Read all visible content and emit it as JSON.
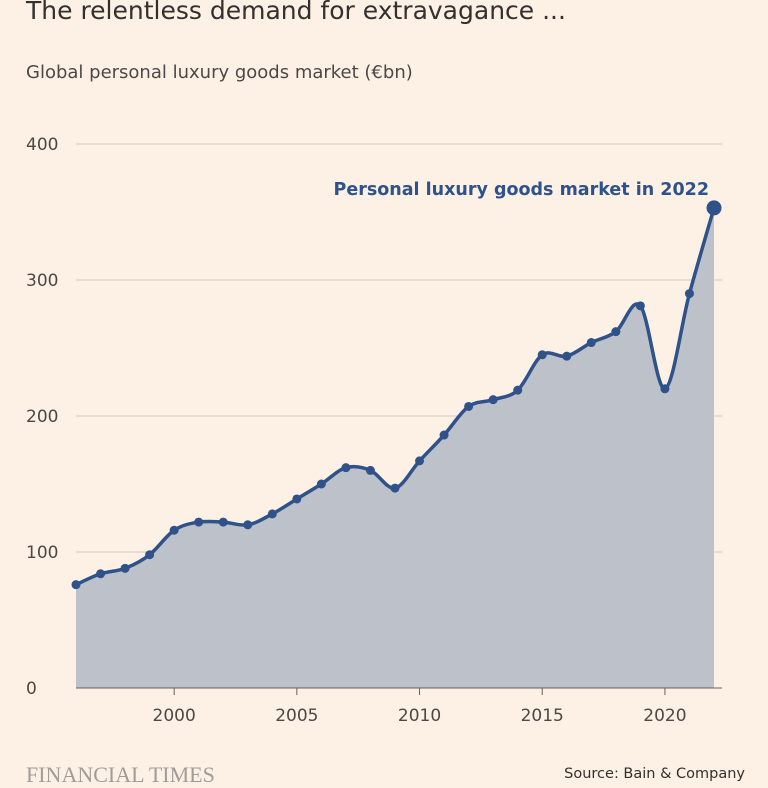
{
  "title": "The relentless demand for extravagance ...",
  "subtitle": "Global personal luxury goods market (€bn)",
  "source": "Source: Bain & Company",
  "logo_text": "FINANCIAL TIMES",
  "colors": {
    "background": "#fdf1e6",
    "line": "#2e5289",
    "area": "#bcc1ca",
    "grid": "#cfc6bd",
    "text": "#4d4845"
  },
  "chart_data": {
    "type": "area",
    "title": "The relentless demand for extravagance ...",
    "ylabel": "Global personal luxury goods market (€bn)",
    "xlim": [
      1996,
      2022
    ],
    "ylim": [
      0,
      400
    ],
    "grid": true,
    "x_ticks": [
      2000,
      2005,
      2010,
      2015,
      2020
    ],
    "y_ticks": [
      0,
      100,
      200,
      300,
      400
    ],
    "x": [
      1996,
      1997,
      1998,
      1999,
      2000,
      2001,
      2002,
      2003,
      2004,
      2005,
      2006,
      2007,
      2008,
      2009,
      2010,
      2011,
      2012,
      2013,
      2014,
      2015,
      2016,
      2017,
      2018,
      2019,
      2020,
      2021,
      2022
    ],
    "values": [
      76,
      84,
      88,
      98,
      116,
      122,
      122,
      120,
      128,
      139,
      150,
      162,
      160,
      147,
      167,
      186,
      207,
      212,
      219,
      245,
      244,
      254,
      262,
      281,
      220,
      290,
      353
    ],
    "annotation": {
      "text": "Personal luxury goods market in 2022",
      "x": 2022,
      "y": 353
    }
  }
}
